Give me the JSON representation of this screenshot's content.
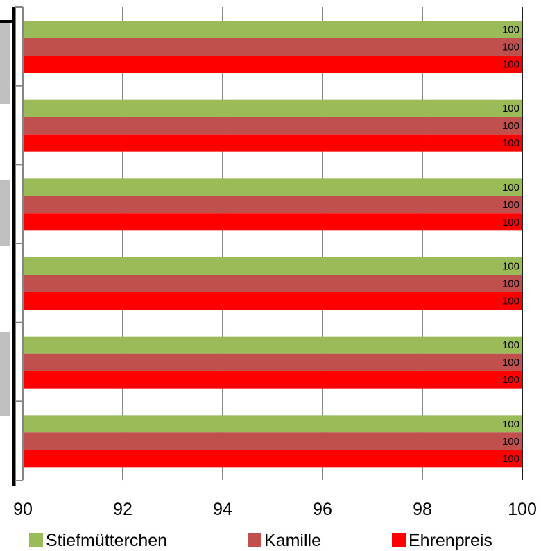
{
  "chart_data": {
    "type": "bar",
    "orientation": "horizontal",
    "categories": [
      "",
      "",
      "",
      "",
      "",
      ""
    ],
    "series": [
      {
        "name": "Stiefmütterchen",
        "color": "#9bbb59",
        "values": [
          100,
          100,
          100,
          100,
          100,
          100
        ]
      },
      {
        "name": "Kamille",
        "color": "#c0504d",
        "values": [
          100,
          100,
          100,
          100,
          100,
          100
        ]
      },
      {
        "name": "Ehrenpreis",
        "color": "#ff0000",
        "values": [
          100,
          100,
          100,
          100,
          100,
          100
        ]
      }
    ],
    "xlim": [
      90,
      100
    ],
    "x_ticks": [
      "90",
      "92",
      "94",
      "96",
      "98",
      "100"
    ],
    "data_labels": true,
    "grid": true,
    "legend_position": "bottom"
  }
}
